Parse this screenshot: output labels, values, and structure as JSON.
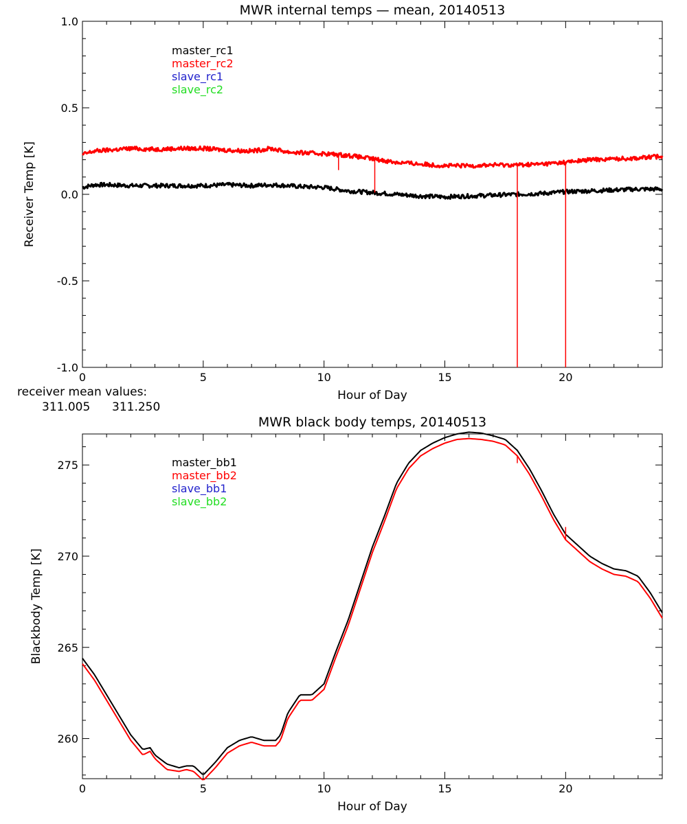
{
  "colors": {
    "black": "#000000",
    "red": "#ff0000",
    "blue": "#2222cc",
    "green": "#22dd22"
  },
  "receiver_mean": {
    "label": "receiver mean values:",
    "values": [
      {
        "text": "311.005",
        "color": "#000000"
      },
      {
        "text": "311.250",
        "color": "#ff0000"
      }
    ]
  },
  "chart_data": [
    {
      "type": "line",
      "title": "MWR internal temps — mean, 20140513",
      "xlabel": "Hour of Day",
      "ylabel": "Receiver Temp [K]",
      "xlim": [
        0,
        24
      ],
      "ylim": [
        -1.0,
        1.0
      ],
      "xticks": [
        0,
        5,
        10,
        15,
        20
      ],
      "xtick_labels": [
        "0",
        "5",
        "10",
        "15",
        "20"
      ],
      "yticks": [
        -1.0,
        -0.5,
        0.0,
        0.5,
        1.0
      ],
      "ytick_labels": [
        "-1.0",
        "-0.5",
        "0.0",
        "0.5",
        "1.0"
      ],
      "legend": [
        "master_rc1",
        "master_rc2",
        "slave_rc1",
        "slave_rc2"
      ],
      "legend_colors": [
        "#000000",
        "#ff0000",
        "#2222cc",
        "#22dd22"
      ],
      "legend_position": "top-left",
      "series": [
        {
          "name": "master_rc1",
          "color": "#000000",
          "x": [
            0,
            0.5,
            1,
            2,
            3,
            4,
            5,
            6,
            7,
            7.8,
            8.5,
            9,
            10,
            11,
            12,
            13,
            14,
            15,
            16,
            17,
            18,
            19,
            20,
            21,
            22,
            23,
            24
          ],
          "y": [
            0.04,
            0.055,
            0.055,
            0.05,
            0.05,
            0.05,
            0.05,
            0.055,
            0.05,
            0.055,
            0.05,
            0.045,
            0.04,
            0.02,
            0.01,
            0.0,
            -0.01,
            -0.015,
            -0.01,
            -0.005,
            0.0,
            0.005,
            0.015,
            0.02,
            0.025,
            0.03,
            0.03
          ]
        },
        {
          "name": "master_rc2",
          "color": "#ff0000",
          "x": [
            0,
            0.5,
            1,
            2,
            3,
            4,
            5,
            6,
            7,
            7.8,
            8.5,
            9,
            10,
            11,
            12,
            13,
            14,
            15,
            16,
            17,
            18,
            19,
            20,
            21,
            22,
            23,
            24
          ],
          "y": [
            0.23,
            0.25,
            0.255,
            0.265,
            0.26,
            0.265,
            0.265,
            0.255,
            0.25,
            0.265,
            0.245,
            0.24,
            0.235,
            0.225,
            0.205,
            0.185,
            0.175,
            0.165,
            0.165,
            0.17,
            0.17,
            0.175,
            0.185,
            0.2,
            0.205,
            0.21,
            0.22
          ],
          "spikes": [
            {
              "x": 10.6,
              "y": 0.14
            },
            {
              "x": 12.1,
              "y": 0.01
            },
            {
              "x": 18.0,
              "y": -1.0
            },
            {
              "x": 20.0,
              "y": -1.0
            }
          ]
        }
      ]
    },
    {
      "type": "line",
      "title": "MWR black body temps, 20140513",
      "xlabel": "Hour of Day",
      "ylabel": "Blackbody Temp [K]",
      "xlim": [
        0,
        24
      ],
      "ylim": [
        257.8,
        276.7
      ],
      "xticks": [
        0,
        5,
        10,
        15,
        20
      ],
      "xtick_labels": [
        "0",
        "5",
        "10",
        "15",
        "20"
      ],
      "yticks": [
        260,
        265,
        270,
        275
      ],
      "ytick_labels": [
        "260",
        "265",
        "270",
        "275"
      ],
      "legend": [
        "master_bb1",
        "master_bb2",
        "slave_bb1",
        "slave_bb2"
      ],
      "legend_colors": [
        "#000000",
        "#ff0000",
        "#2222cc",
        "#22dd22"
      ],
      "legend_position": "top-left",
      "series": [
        {
          "name": "master_bb1",
          "color": "#000000",
          "x": [
            0,
            0.5,
            1,
            1.5,
            2,
            2.5,
            2.8,
            3,
            3.5,
            4,
            4.3,
            4.6,
            5,
            5.5,
            6,
            6.5,
            7,
            7.5,
            8,
            8.2,
            8.5,
            9,
            9.5,
            10,
            10.5,
            11,
            11.5,
            12,
            12.5,
            13,
            13.5,
            14,
            14.5,
            15,
            15.5,
            16,
            16.5,
            17,
            17.5,
            18,
            18.5,
            19,
            19.5,
            20,
            20.5,
            21,
            21.5,
            22,
            22.5,
            23,
            23.5,
            24
          ],
          "y": [
            264.4,
            263.5,
            262.4,
            261.3,
            260.2,
            259.4,
            259.5,
            259.1,
            258.6,
            258.4,
            258.5,
            258.5,
            258.0,
            258.7,
            259.5,
            259.9,
            260.1,
            259.9,
            259.9,
            260.2,
            261.4,
            262.4,
            262.4,
            263.0,
            264.8,
            266.5,
            268.5,
            270.5,
            272.2,
            274.0,
            275.1,
            275.8,
            276.2,
            276.5,
            276.7,
            276.8,
            276.75,
            276.6,
            276.4,
            275.8,
            274.8,
            273.6,
            272.3,
            271.2,
            270.6,
            270.0,
            269.6,
            269.3,
            269.2,
            268.9,
            268.0,
            266.9
          ]
        },
        {
          "name": "master_bb2",
          "color": "#ff0000",
          "x": [
            0,
            0.5,
            1,
            1.5,
            2,
            2.5,
            2.8,
            3,
            3.5,
            4,
            4.3,
            4.6,
            5,
            5.5,
            6,
            6.5,
            7,
            7.5,
            8,
            8.2,
            8.5,
            9,
            9.5,
            10,
            10.5,
            11,
            11.5,
            12,
            12.5,
            13,
            13.5,
            14,
            14.5,
            15,
            15.5,
            16,
            16.5,
            17,
            17.5,
            18,
            18.5,
            19,
            19.5,
            20,
            20.5,
            21,
            21.5,
            22,
            22.5,
            23,
            23.5,
            24
          ],
          "y": [
            264.1,
            263.2,
            262.1,
            261.0,
            259.9,
            259.1,
            259.3,
            258.9,
            258.3,
            258.2,
            258.3,
            258.2,
            257.7,
            258.4,
            259.2,
            259.6,
            259.8,
            259.6,
            259.6,
            259.9,
            261.1,
            262.1,
            262.1,
            262.7,
            264.5,
            266.2,
            268.2,
            270.2,
            271.9,
            273.7,
            274.8,
            275.5,
            275.9,
            276.2,
            276.4,
            276.45,
            276.4,
            276.3,
            276.1,
            275.5,
            274.5,
            273.3,
            272.0,
            270.9,
            270.3,
            269.7,
            269.3,
            269.0,
            268.9,
            268.6,
            267.7,
            266.6
          ],
          "spikes": [
            {
              "x": 18.0,
              "y": 275.1
            },
            {
              "x": 20.0,
              "y": 271.6
            }
          ]
        }
      ]
    }
  ]
}
